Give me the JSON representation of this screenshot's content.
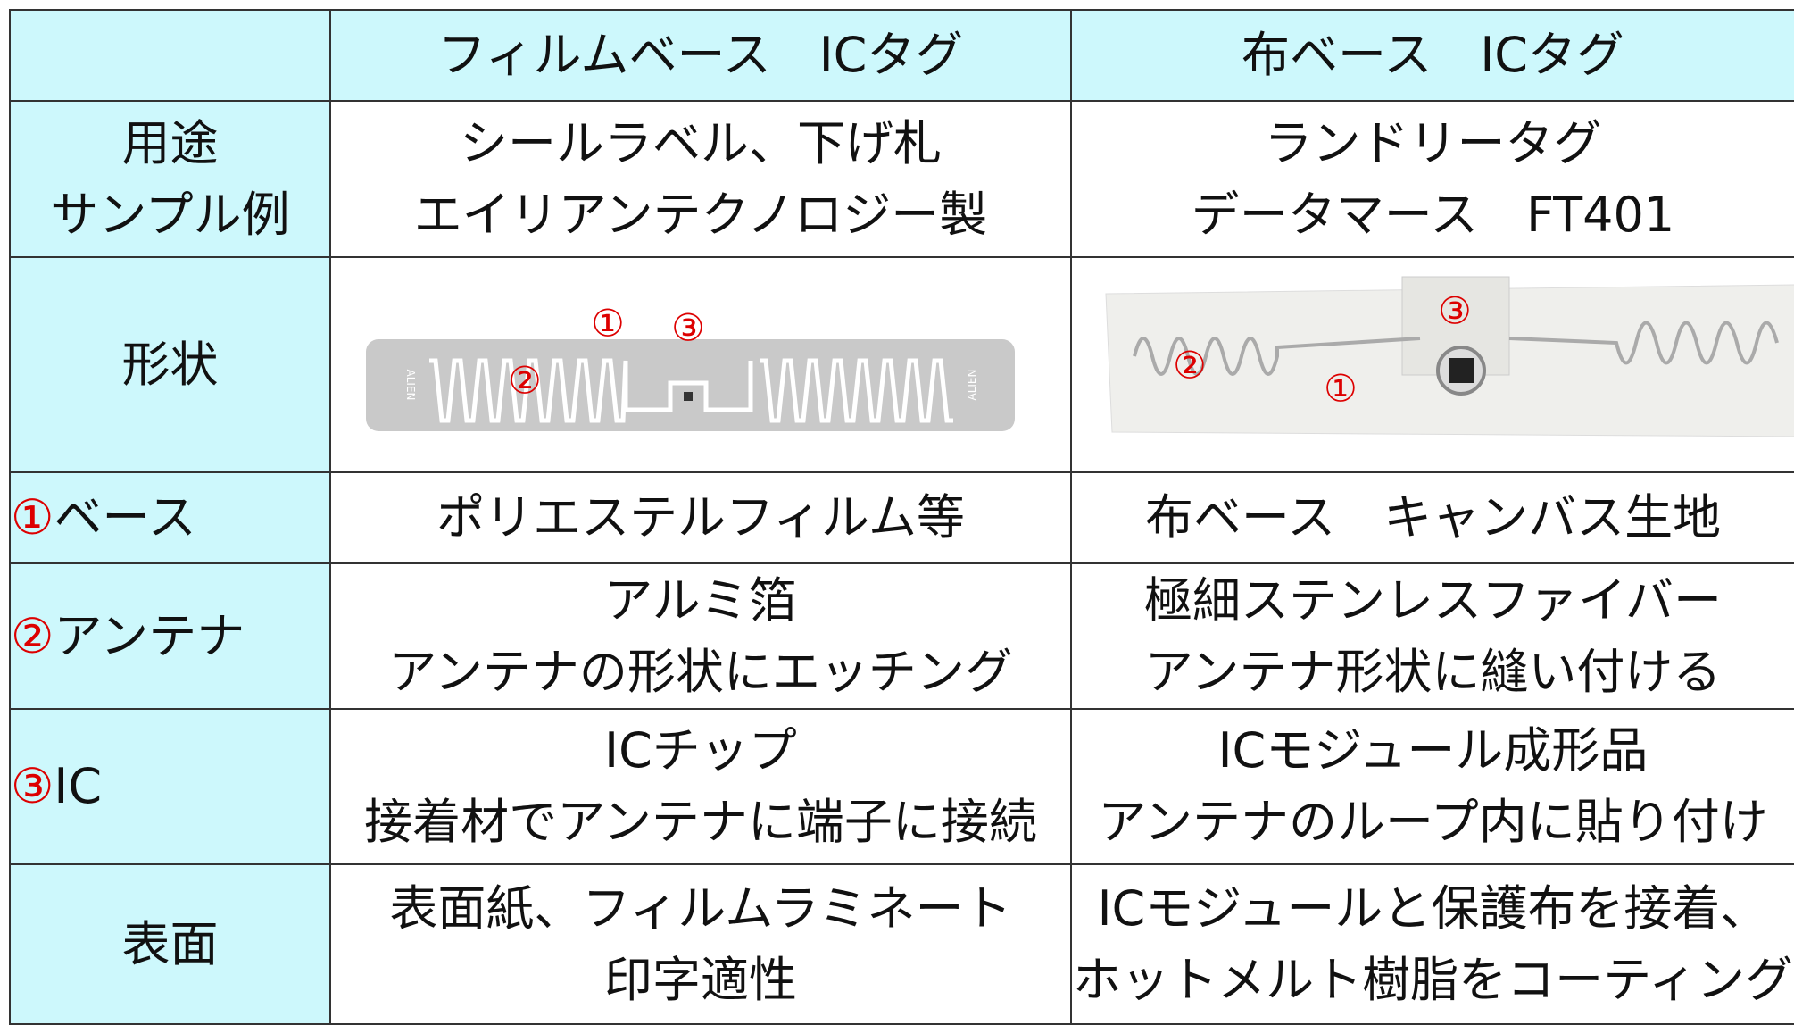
{
  "table": {
    "header": {
      "columns": [
        "フィルムベース　ICタグ",
        "布ベース　ICタグ"
      ]
    },
    "rows": [
      {
        "label": {
          "lines": [
            "用途",
            "サンプル例"
          ]
        },
        "cells": [
          {
            "lines": [
              "シールラベル、下げ札",
              "エイリアンテクノロジー製"
            ]
          },
          {
            "lines": [
              "ランドリータグ",
              "データマース　FT401"
            ]
          }
        ]
      },
      {
        "label": {
          "lines": [
            "形状"
          ]
        },
        "images": [
          {
            "labels": [
              "①",
              "③",
              "②"
            ],
            "brand": "ALIEN"
          },
          {
            "labels": [
              "③",
              "②",
              "①"
            ]
          }
        ]
      },
      {
        "label": {
          "marker": "①",
          "text": "ベース"
        },
        "cells": [
          {
            "lines": [
              "ポリエステルフィルム等"
            ]
          },
          {
            "lines": [
              "布ベース　キャンバス生地"
            ]
          }
        ]
      },
      {
        "label": {
          "marker": "②",
          "text": "アンテナ"
        },
        "cells": [
          {
            "lines": [
              "アルミ箔",
              "アンテナの形状にエッチング"
            ]
          },
          {
            "lines": [
              "極細ステンレスファイバー",
              "アンテナ形状に縫い付ける"
            ]
          }
        ]
      },
      {
        "label": {
          "marker": "③",
          "text": "IC"
        },
        "cells": [
          {
            "lines": [
              "ICチップ",
              "接着材でアンテナに端子に接続"
            ]
          },
          {
            "lines": [
              "ICモジュール成形品",
              "アンテナのループ内に貼り付け"
            ]
          }
        ]
      },
      {
        "label": {
          "lines": [
            "表面"
          ]
        },
        "cells": [
          {
            "lines": [
              "表面紙、フィルムラミネート",
              "印字適性"
            ]
          },
          {
            "lines": [
              "ICモジュールと保護布を接着、",
              "ホットメルト樹脂をコーティング"
            ]
          }
        ]
      }
    ]
  }
}
